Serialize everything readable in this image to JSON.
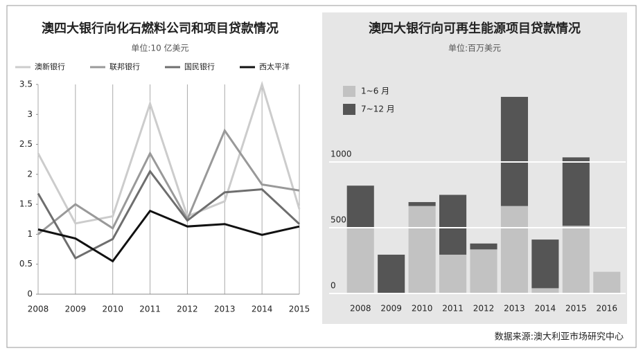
{
  "chart_data": [
    {
      "type": "line",
      "title": "澳四大银行向化石燃料公司和项目贷款情况",
      "subtitle": "单位:10 亿美元",
      "categories": [
        "2008",
        "2009",
        "2010",
        "2011",
        "2012",
        "2013",
        "2014",
        "2015"
      ],
      "series": [
        {
          "name": "澳新银行",
          "color": "#cccccc",
          "values": [
            2.35,
            1.18,
            1.3,
            3.18,
            1.3,
            1.55,
            3.5,
            1.42
          ]
        },
        {
          "name": "联邦银行",
          "color": "#999999",
          "values": [
            1.0,
            1.5,
            1.1,
            2.35,
            1.25,
            2.73,
            1.83,
            1.73
          ]
        },
        {
          "name": "国民银行",
          "color": "#6e6e6e",
          "values": [
            1.68,
            0.6,
            0.92,
            2.05,
            1.23,
            1.7,
            1.75,
            1.17
          ]
        },
        {
          "name": "西太平洋",
          "color": "#111111",
          "values": [
            1.08,
            0.93,
            0.55,
            1.39,
            1.13,
            1.17,
            0.99,
            1.13
          ]
        }
      ],
      "ylim": [
        0,
        3.5
      ],
      "yticks": [
        0,
        0.5,
        1,
        1.5,
        2,
        2.5,
        3,
        3.5
      ],
      "grid": true,
      "legend": "top"
    },
    {
      "type": "bar",
      "title": "澳四大银行向可再生能源项目贷款情况",
      "subtitle": "单位:百万美元",
      "stacked": true,
      "categories": [
        "2008",
        "2009",
        "2010",
        "2011",
        "2012",
        "2013",
        "2014",
        "2015",
        "2016"
      ],
      "series": [
        {
          "name": "1~6 月",
          "color": "#c2c2c2",
          "values": [
            500,
            0,
            665,
            295,
            335,
            665,
            40,
            515,
            165
          ]
        },
        {
          "name": "7~12 月",
          "color": "#555555",
          "values": [
            320,
            295,
            30,
            455,
            45,
            830,
            370,
            520,
            0
          ]
        }
      ],
      "ylim": [
        0,
        1600
      ],
      "yticks": [
        0,
        500,
        1000
      ],
      "grid": true,
      "legend": "top-left"
    }
  ],
  "source": "数据来源:澳大利亚市场研究中心"
}
